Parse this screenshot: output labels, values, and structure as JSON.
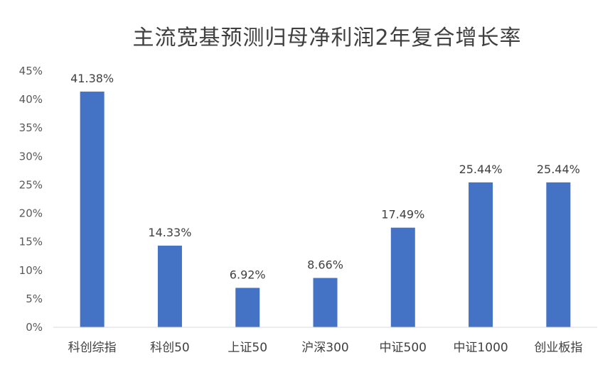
{
  "chart_data": {
    "type": "bar",
    "title": "主流宽基预测归母净利润2年复合增长率",
    "xlabel": "",
    "ylabel": "",
    "categories": [
      "科创综指",
      "科创50",
      "上证50",
      "沪深300",
      "中证500",
      "中证1000",
      "创业板指"
    ],
    "values": [
      41.38,
      14.33,
      6.92,
      8.66,
      17.49,
      25.44,
      25.44
    ],
    "data_labels": [
      "41.38%",
      "14.33%",
      "6.92%",
      "8.66%",
      "17.49%",
      "25.44%",
      "25.44%"
    ],
    "ylim": [
      0,
      45
    ],
    "yticks": [
      0,
      5,
      10,
      15,
      20,
      25,
      30,
      35,
      40,
      45
    ],
    "ytick_labels": [
      "0%",
      "5%",
      "10%",
      "15%",
      "20%",
      "25%",
      "30%",
      "35%",
      "40%",
      "45%"
    ],
    "grid": false,
    "legend": "none",
    "bar_color": "#4472C4"
  }
}
